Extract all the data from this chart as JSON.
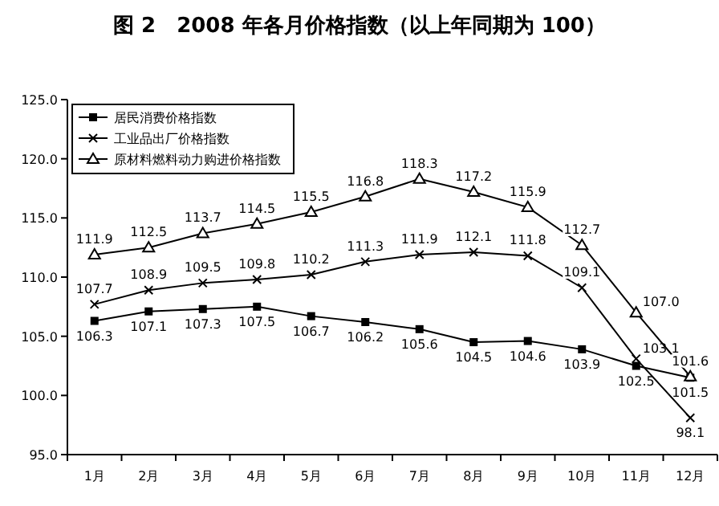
{
  "chart_data": {
    "type": "line",
    "title": "图 2　2008 年各月价格指数（以上年同期为 100）",
    "categories": [
      "1月",
      "2月",
      "3月",
      "4月",
      "5月",
      "6月",
      "7月",
      "8月",
      "9月",
      "10月",
      "11月",
      "12月"
    ],
    "ylim": [
      95,
      125
    ],
    "yticks": [
      {
        "value": 95,
        "label": "95.0"
      },
      {
        "value": 100,
        "label": "100.0"
      },
      {
        "value": 105,
        "label": "105.0"
      },
      {
        "value": 110,
        "label": "110.0"
      },
      {
        "value": 115,
        "label": "115.0"
      },
      {
        "value": 120,
        "label": "120.0"
      },
      {
        "value": 125,
        "label": "125.0"
      }
    ],
    "grid": false,
    "legend": "top left",
    "series": [
      {
        "name": "居民消费价格指数",
        "color": "#000000",
        "marker": "square",
        "values": [
          106.3,
          107.1,
          107.3,
          107.5,
          106.7,
          106.2,
          105.6,
          104.5,
          104.6,
          103.9,
          102.5,
          101.5
        ],
        "value_labels": [
          "106.3",
          "107.1",
          "107.3",
          "107.5",
          "106.7",
          "106.2",
          "105.6",
          "104.5",
          "104.6",
          "103.9",
          "102.5",
          "101.5"
        ]
      },
      {
        "name": "工业品出厂价格指数",
        "color": "#000000",
        "marker": "cross",
        "values": [
          107.7,
          108.9,
          109.5,
          109.8,
          110.2,
          111.3,
          111.9,
          112.1,
          111.8,
          109.1,
          103.1,
          98.1
        ],
        "value_labels": [
          "107.7",
          "108.9",
          "109.5",
          "109.8",
          "110.2",
          "111.3",
          "111.9",
          "112.1",
          "111.8",
          "109.1",
          "103.1",
          "98.1"
        ]
      },
      {
        "name": "原材料燃料动力购进价格指数",
        "color": "#000000",
        "marker": "triangle",
        "values": [
          111.9,
          112.5,
          113.7,
          114.5,
          115.5,
          116.8,
          118.3,
          117.2,
          115.9,
          112.7,
          107.0,
          101.6
        ],
        "value_labels": [
          "111.9",
          "112.5",
          "113.7",
          "114.5",
          "115.5",
          "116.8",
          "118.3",
          "117.2",
          "115.9",
          "112.7",
          "107.0",
          "101.6"
        ]
      }
    ]
  }
}
